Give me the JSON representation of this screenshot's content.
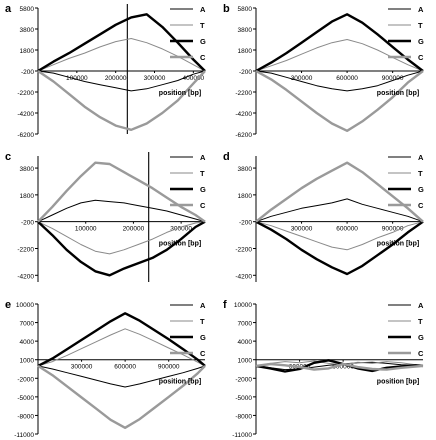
{
  "figure": {
    "panels": [
      {
        "label": "a",
        "xlabel": "position [bp]",
        "yticks": [
          "5800",
          "3800",
          "1800",
          "-200",
          "-2200",
          "-4200",
          "-6200"
        ],
        "xticks": [
          "100000",
          "200000",
          "300000",
          "400000"
        ]
      },
      {
        "label": "b",
        "xlabel": "position [bp]",
        "yticks": [
          "5800",
          "3800",
          "1800",
          "-200",
          "-2200",
          "-4200",
          "-6200"
        ],
        "xticks": [
          "300000",
          "600000",
          "900000"
        ]
      },
      {
        "label": "c",
        "xlabel": "position [bp]",
        "yticks": [
          "3800",
          "1800",
          "-200",
          "-2200",
          "-4200"
        ],
        "xticks": [
          "100000",
          "200000",
          "300000"
        ]
      },
      {
        "label": "d",
        "xlabel": "position [bp]",
        "yticks": [
          "3800",
          "1800",
          "-200",
          "-2200",
          "-4200"
        ],
        "xticks": [
          "300000",
          "600000",
          "900000"
        ]
      },
      {
        "label": "e",
        "xlabel": "position [bp]",
        "yticks": [
          "10000",
          "7000",
          "4000",
          "1000",
          "-2000",
          "-5000",
          "-8000",
          "-11000"
        ],
        "xticks": [
          "300000",
          "600000",
          "900000"
        ]
      },
      {
        "label": "f",
        "xlabel": "position [bp]",
        "yticks": [
          "10000",
          "7000",
          "4000",
          "1000",
          "-2000",
          "-5000",
          "-8000",
          "-11000"
        ],
        "xticks": [
          "300000",
          "600000"
        ]
      }
    ]
  },
  "chart_data": [
    {
      "type": "line",
      "panel": "a",
      "xlabel": "position [bp]",
      "ylabel": "",
      "xlim": [
        0,
        430000
      ],
      "ylim": [
        -6200,
        5800
      ],
      "vline": 230000,
      "legend": "top-right",
      "series": [
        {
          "name": "A",
          "color": "#000000",
          "width": 1.0,
          "x": [
            0,
            40000,
            80000,
            120000,
            160000,
            200000,
            240000,
            280000,
            320000,
            360000,
            400000,
            430000
          ],
          "y": [
            -200,
            -400,
            -800,
            -1200,
            -1500,
            -1800,
            -2100,
            -1900,
            -1500,
            -1100,
            -500,
            -200
          ]
        },
        {
          "name": "T",
          "color": "#8a8a8a",
          "width": 1.0,
          "x": [
            0,
            40000,
            80000,
            120000,
            160000,
            200000,
            240000,
            280000,
            320000,
            360000,
            400000,
            430000
          ],
          "y": [
            -200,
            400,
            1000,
            1500,
            2100,
            2600,
            2900,
            2500,
            1900,
            1200,
            400,
            -200
          ]
        },
        {
          "name": "G",
          "color": "#000000",
          "width": 2.4,
          "x": [
            0,
            40000,
            80000,
            120000,
            160000,
            200000,
            240000,
            280000,
            320000,
            360000,
            400000,
            430000
          ],
          "y": [
            -200,
            700,
            1500,
            2400,
            3300,
            4200,
            4900,
            5200,
            4000,
            2500,
            900,
            -200
          ]
        },
        {
          "name": "C",
          "color": "#9a9a9a",
          "width": 2.4,
          "x": [
            0,
            40000,
            80000,
            120000,
            160000,
            200000,
            240000,
            280000,
            320000,
            360000,
            400000,
            430000
          ],
          "y": [
            -200,
            -1200,
            -2400,
            -3600,
            -4600,
            -5400,
            -5800,
            -5200,
            -4200,
            -3000,
            -1400,
            -200
          ]
        }
      ]
    },
    {
      "type": "line",
      "panel": "b",
      "xlabel": "position [bp]",
      "ylabel": "",
      "xlim": [
        0,
        1100000
      ],
      "ylim": [
        -6200,
        5800
      ],
      "legend": "top-right",
      "series": [
        {
          "name": "A",
          "color": "#000000",
          "width": 1.0,
          "x": [
            0,
            100000,
            200000,
            300000,
            400000,
            500000,
            600000,
            700000,
            800000,
            900000,
            1000000,
            1100000
          ],
          "y": [
            -200,
            -400,
            -800,
            -1200,
            -1600,
            -1900,
            -2100,
            -1900,
            -1600,
            -1100,
            -600,
            -200
          ]
        },
        {
          "name": "T",
          "color": "#8a8a8a",
          "width": 1.0,
          "x": [
            0,
            100000,
            200000,
            300000,
            400000,
            500000,
            600000,
            700000,
            800000,
            900000,
            1000000,
            1100000
          ],
          "y": [
            -200,
            300,
            800,
            1400,
            2000,
            2500,
            2800,
            2400,
            1800,
            1100,
            400,
            -200
          ]
        },
        {
          "name": "G",
          "color": "#000000",
          "width": 2.4,
          "x": [
            0,
            100000,
            200000,
            300000,
            400000,
            500000,
            600000,
            700000,
            800000,
            900000,
            1000000,
            1100000
          ],
          "y": [
            -200,
            600,
            1500,
            2500,
            3500,
            4500,
            5200,
            4400,
            3300,
            2100,
            900,
            -200
          ]
        },
        {
          "name": "C",
          "color": "#9a9a9a",
          "width": 2.4,
          "x": [
            0,
            100000,
            200000,
            300000,
            400000,
            500000,
            600000,
            700000,
            800000,
            900000,
            1000000,
            1100000
          ],
          "y": [
            -200,
            -1000,
            -2000,
            -3100,
            -4200,
            -5200,
            -5900,
            -5000,
            -3900,
            -2700,
            -1300,
            -200
          ]
        }
      ]
    },
    {
      "type": "line",
      "panel": "c",
      "xlabel": "position [bp]",
      "ylabel": "",
      "xlim": [
        0,
        350000
      ],
      "ylim": [
        -4700,
        4700
      ],
      "vline": 232000,
      "legend": "top-right",
      "series": [
        {
          "name": "A",
          "color": "#000000",
          "width": 1.0,
          "x": [
            0,
            30000,
            60000,
            90000,
            120000,
            150000,
            180000,
            210000,
            240000,
            270000,
            300000,
            330000,
            350000
          ],
          "y": [
            -200,
            300,
            800,
            1200,
            1400,
            1300,
            1200,
            1000,
            800,
            600,
            300,
            0,
            -200
          ]
        },
        {
          "name": "T",
          "color": "#8a8a8a",
          "width": 1.0,
          "x": [
            0,
            30000,
            60000,
            90000,
            120000,
            150000,
            180000,
            210000,
            240000,
            270000,
            300000,
            330000,
            350000
          ],
          "y": [
            -200,
            -700,
            -1300,
            -1900,
            -2400,
            -2600,
            -2300,
            -1900,
            -1500,
            -1000,
            -600,
            -300,
            -200
          ]
        },
        {
          "name": "G",
          "color": "#000000",
          "width": 2.4,
          "x": [
            0,
            30000,
            60000,
            90000,
            120000,
            150000,
            180000,
            210000,
            240000,
            270000,
            300000,
            330000,
            350000
          ],
          "y": [
            -200,
            -1200,
            -2300,
            -3200,
            -3900,
            -4200,
            -3700,
            -3300,
            -2900,
            -2300,
            -1500,
            -600,
            -200
          ]
        },
        {
          "name": "C",
          "color": "#9a9a9a",
          "width": 2.4,
          "x": [
            0,
            30000,
            60000,
            90000,
            120000,
            150000,
            180000,
            210000,
            240000,
            270000,
            300000,
            330000,
            350000
          ],
          "y": [
            -200,
            900,
            2100,
            3200,
            4200,
            4100,
            3500,
            2900,
            2300,
            1600,
            900,
            300,
            -200
          ]
        }
      ]
    },
    {
      "type": "line",
      "panel": "d",
      "xlabel": "position [bp]",
      "ylabel": "",
      "xlim": [
        0,
        1100000
      ],
      "ylim": [
        -4700,
        4700
      ],
      "legend": "top-right",
      "series": [
        {
          "name": "A",
          "color": "#000000",
          "width": 1.0,
          "x": [
            0,
            100000,
            200000,
            300000,
            400000,
            500000,
            600000,
            700000,
            800000,
            900000,
            1000000,
            1100000
          ],
          "y": [
            -200,
            200,
            500,
            800,
            1000,
            1200,
            1500,
            1100,
            800,
            500,
            200,
            -200
          ]
        },
        {
          "name": "T",
          "color": "#8a8a8a",
          "width": 1.0,
          "x": [
            0,
            100000,
            200000,
            300000,
            400000,
            500000,
            600000,
            700000,
            800000,
            900000,
            1000000,
            1100000
          ],
          "y": [
            -200,
            -500,
            -900,
            -1300,
            -1700,
            -2100,
            -2300,
            -1900,
            -1400,
            -1000,
            -500,
            -200
          ]
        },
        {
          "name": "G",
          "color": "#000000",
          "width": 2.4,
          "x": [
            0,
            100000,
            200000,
            300000,
            400000,
            500000,
            600000,
            700000,
            800000,
            900000,
            1000000,
            1100000
          ],
          "y": [
            -200,
            -800,
            -1500,
            -2300,
            -3000,
            -3600,
            -4100,
            -3500,
            -2700,
            -1900,
            -1000,
            -200
          ]
        },
        {
          "name": "C",
          "color": "#9a9a9a",
          "width": 2.4,
          "x": [
            0,
            100000,
            200000,
            300000,
            400000,
            500000,
            600000,
            700000,
            800000,
            900000,
            1000000,
            1100000
          ],
          "y": [
            -200,
            700,
            1500,
            2300,
            3000,
            3600,
            4200,
            3500,
            2600,
            1700,
            800,
            -200
          ]
        }
      ]
    },
    {
      "type": "line",
      "panel": "e",
      "xlabel": "position [bp]",
      "ylabel": "",
      "xlim": [
        0,
        1150000
      ],
      "ylim": [
        -11000,
        10000
      ],
      "legend": "top-right",
      "series": [
        {
          "name": "A",
          "color": "#000000",
          "width": 1.0,
          "x": [
            0,
            100000,
            200000,
            300000,
            400000,
            500000,
            600000,
            700000,
            800000,
            900000,
            1000000,
            1100000,
            1150000
          ],
          "y": [
            0,
            -500,
            -1100,
            -1700,
            -2300,
            -2900,
            -3400,
            -2900,
            -2300,
            -1700,
            -1100,
            -400,
            0
          ]
        },
        {
          "name": "T",
          "color": "#8a8a8a",
          "width": 1.0,
          "x": [
            0,
            100000,
            200000,
            300000,
            400000,
            500000,
            600000,
            700000,
            800000,
            900000,
            1000000,
            1100000,
            1150000
          ],
          "y": [
            0,
            700,
            1700,
            2800,
            3900,
            5000,
            6000,
            5100,
            4000,
            2900,
            1800,
            600,
            0
          ]
        },
        {
          "name": "G",
          "color": "#000000",
          "width": 2.4,
          "x": [
            0,
            100000,
            200000,
            300000,
            400000,
            500000,
            600000,
            700000,
            800000,
            900000,
            1000000,
            1100000,
            1150000
          ],
          "y": [
            0,
            1200,
            2700,
            4200,
            5700,
            7200,
            8500,
            7300,
            5800,
            4300,
            2700,
            1000,
            0
          ]
        },
        {
          "name": "C",
          "color": "#9a9a9a",
          "width": 2.4,
          "x": [
            0,
            100000,
            200000,
            300000,
            400000,
            500000,
            600000,
            700000,
            800000,
            900000,
            1000000,
            1100000,
            1150000
          ],
          "y": [
            0,
            -1500,
            -3300,
            -5100,
            -6900,
            -8700,
            -10000,
            -8600,
            -6800,
            -5000,
            -3200,
            -1200,
            0
          ]
        }
      ]
    },
    {
      "type": "line",
      "panel": "f",
      "xlabel": "position [bp]",
      "ylabel": "",
      "xlim": [
        0,
        1150000
      ],
      "ylim": [
        -11000,
        10000
      ],
      "legend": "top-right",
      "series": [
        {
          "name": "A",
          "color": "#000000",
          "width": 1.0,
          "x": [
            0,
            100000,
            200000,
            300000,
            400000,
            500000,
            600000,
            700000,
            800000,
            900000,
            1000000,
            1100000,
            1150000
          ],
          "y": [
            0,
            -300,
            -600,
            -500,
            -200,
            100,
            300,
            500,
            600,
            400,
            200,
            100,
            0
          ]
        },
        {
          "name": "T",
          "color": "#8a8a8a",
          "width": 1.0,
          "x": [
            0,
            100000,
            200000,
            300000,
            400000,
            500000,
            600000,
            700000,
            800000,
            900000,
            1000000,
            1100000,
            1150000
          ],
          "y": [
            0,
            400,
            700,
            500,
            800,
            400,
            200,
            600,
            400,
            700,
            500,
            200,
            0
          ]
        },
        {
          "name": "G",
          "color": "#000000",
          "width": 2.4,
          "x": [
            0,
            100000,
            200000,
            300000,
            400000,
            500000,
            600000,
            700000,
            800000,
            900000,
            1000000,
            1100000,
            1150000
          ],
          "y": [
            0,
            -400,
            -900,
            -500,
            500,
            900,
            300,
            -400,
            -800,
            -300,
            -100,
            100,
            0
          ]
        },
        {
          "name": "C",
          "color": "#9a9a9a",
          "width": 2.4,
          "x": [
            0,
            100000,
            200000,
            300000,
            400000,
            500000,
            600000,
            700000,
            800000,
            900000,
            1000000,
            1100000,
            1150000
          ],
          "y": [
            0,
            300,
            100,
            -200,
            -600,
            -400,
            300,
            -200,
            -500,
            -600,
            -300,
            -100,
            0
          ]
        }
      ]
    }
  ]
}
